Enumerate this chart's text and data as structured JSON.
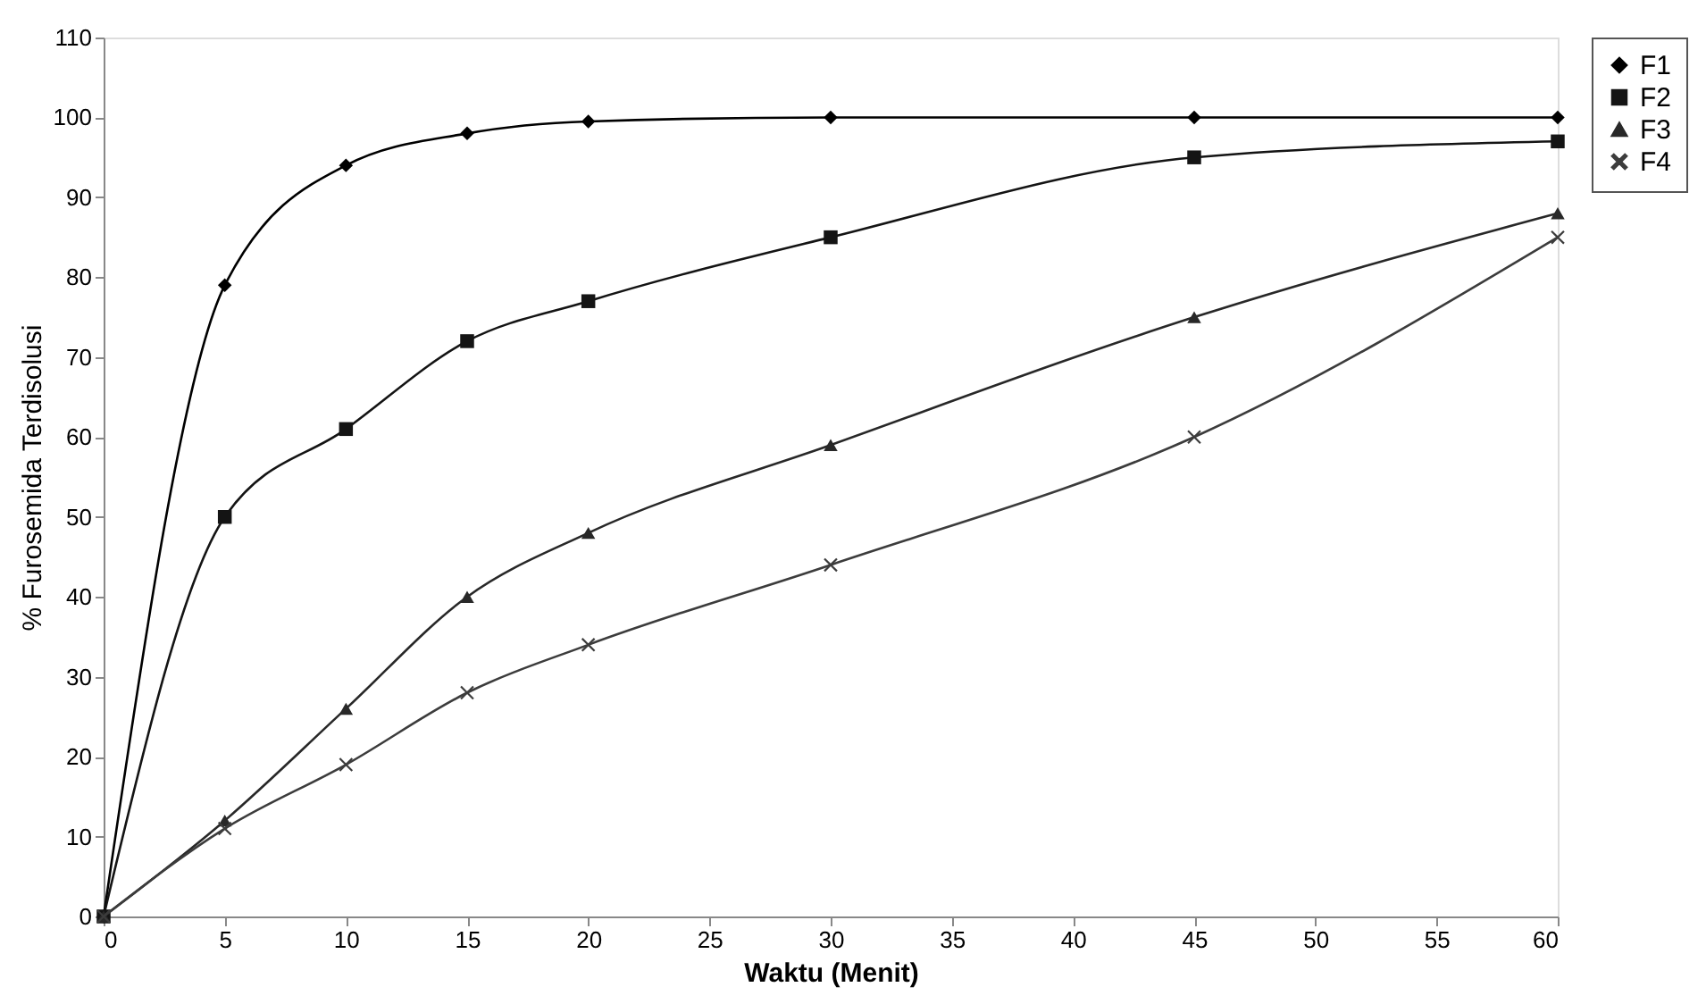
{
  "chart_data": {
    "type": "line",
    "xlabel": "Waktu (Menit)",
    "ylabel": "% Furosemida Terdisolusi",
    "x": [
      0,
      5,
      10,
      15,
      20,
      30,
      45,
      60
    ],
    "series": [
      {
        "name": "F1",
        "color": "#000000",
        "marker": "diamond",
        "values": [
          0,
          79,
          94,
          98,
          99.5,
          100,
          100,
          100
        ]
      },
      {
        "name": "F2",
        "color": "#141414",
        "marker": "square",
        "values": [
          0,
          50,
          61,
          72,
          77,
          85,
          95,
          97
        ]
      },
      {
        "name": "F3",
        "color": "#282828",
        "marker": "triangle",
        "values": [
          0,
          12,
          26,
          40,
          48,
          59,
          75,
          88
        ]
      },
      {
        "name": "F4",
        "color": "#3c3c3c",
        "marker": "cross",
        "values": [
          0,
          11,
          19,
          28,
          34,
          44,
          60,
          85
        ]
      }
    ],
    "xlim": [
      0,
      60
    ],
    "xticks": [
      0,
      5,
      10,
      15,
      20,
      25,
      30,
      35,
      40,
      45,
      50,
      55,
      60
    ],
    "ylim": [
      0,
      110
    ],
    "yticks": [
      0,
      10,
      20,
      30,
      40,
      50,
      60,
      70,
      80,
      90,
      100,
      110
    ],
    "grid": false,
    "legend": "right",
    "line_style": "solid"
  }
}
